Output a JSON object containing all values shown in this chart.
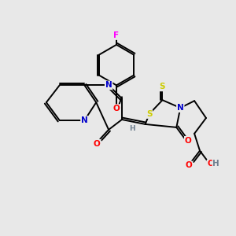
{
  "bg_color": "#e8e8e8",
  "bond_color": "#000000",
  "atom_colors": {
    "N": "#0000cc",
    "O": "#ff0000",
    "S": "#cccc00",
    "F": "#ff00ff",
    "C": "#000000",
    "H": "#708090"
  },
  "figsize": [
    3.0,
    3.0
  ],
  "dpi": 100
}
